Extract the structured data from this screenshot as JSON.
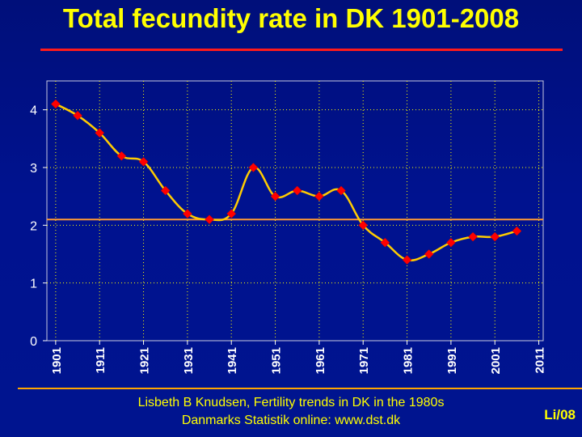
{
  "title": "Total fecundity rate in DK 1901-2008",
  "footer": {
    "line1": "Lisbeth B Knudsen, Fertility trends in DK in the 1980s",
    "line2": "Danmarks Statistik online: www.dst.dk"
  },
  "slide_id": "Li/08",
  "colors": {
    "title": "#ffff00",
    "title_rule": "#ff1a1a",
    "series_line": "#ffcc00",
    "marker": "#ff0000",
    "reference_line": "#ff9933",
    "gridlines": "#ffff00",
    "axis_text": "#ffffff"
  },
  "chart_data": {
    "type": "line",
    "title": "Total fecundity rate in DK 1901-2008",
    "xlabel": "",
    "ylabel": "",
    "x_tick_labels": [
      "1901",
      "1911",
      "1921",
      "1931",
      "1941",
      "1951",
      "1961",
      "1971",
      "1981",
      "1991",
      "2001",
      "2011"
    ],
    "y_tick_labels": [
      "0",
      "1",
      "2",
      "3",
      "4"
    ],
    "ylim": [
      0,
      4.5
    ],
    "xlim": [
      1899,
      2012
    ],
    "grid": true,
    "legend": "none",
    "series": [
      {
        "x": [
          1901,
          1906,
          1911,
          1916,
          1921,
          1926,
          1931,
          1936,
          1941,
          1946,
          1951,
          1956,
          1961,
          1966,
          1971,
          1976,
          1981,
          1986,
          1991,
          1996,
          2001,
          2006
        ],
        "values": [
          4.1,
          3.9,
          3.6,
          3.2,
          3.1,
          2.6,
          2.2,
          2.1,
          2.2,
          3.0,
          2.5,
          2.6,
          2.5,
          2.6,
          2.0,
          1.7,
          1.4,
          1.5,
          1.7,
          1.8,
          1.8,
          1.9
        ]
      }
    ],
    "reference_line": {
      "y": 2.1
    }
  }
}
